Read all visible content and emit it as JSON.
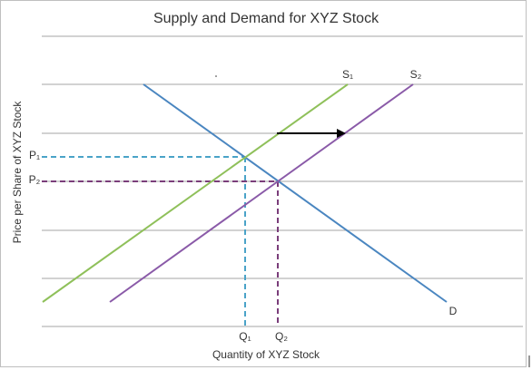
{
  "header": {
    "title": "Supply and Demand for XYZ Stock"
  },
  "axes": {
    "x_label": "Quantity of XYZ Stock",
    "y_label": "Price per Share of XYZ Stock"
  },
  "curves": {
    "supply_1": "S₁",
    "supply_2": "S₂",
    "demand": "D"
  },
  "points": {
    "p1": "P₁",
    "p2": "P₂",
    "q1": "Q₁",
    "q2": "Q₂"
  }
}
